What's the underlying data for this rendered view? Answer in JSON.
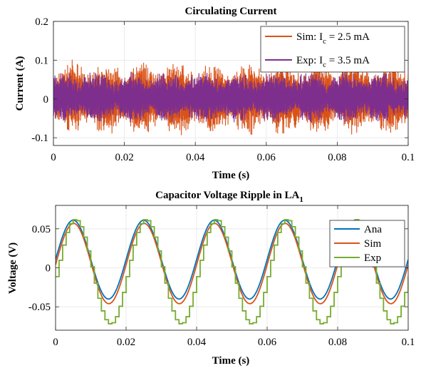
{
  "chart_data": [
    {
      "type": "line",
      "title": "Circulating Current",
      "xlabel": "Time (s)",
      "ylabel": "Current (A)",
      "xlim": [
        0,
        0.1
      ],
      "ylim": [
        -0.12,
        0.2
      ],
      "xticks": [
        0,
        0.02,
        0.04,
        0.06,
        0.08,
        0.1
      ],
      "xtick_labels": [
        "0",
        "0.02",
        "0.04",
        "0.06",
        "0.08",
        "0.1"
      ],
      "yticks": [
        -0.1,
        0,
        0.1,
        0.2
      ],
      "ytick_labels": [
        "-0.1",
        "0",
        "0.1",
        "0.2"
      ],
      "grid": true,
      "legend_position": "top-right",
      "series": [
        {
          "name": "Sim: I_c = 2.5 mA",
          "legend_main": "Sim: I",
          "legend_sub": "c",
          "legend_rest": " = 2.5 mA",
          "color": "#D95319",
          "amplitude": 0.085,
          "mean": 0.0025,
          "noise": "high-frequency switching ripple"
        },
        {
          "name": "Exp: I_c = 3.5 mA",
          "legend_main": "Exp: I",
          "legend_sub": "c",
          "legend_rest": " = 3.5 mA",
          "color": "#7E2F8E",
          "amplitude": 0.06,
          "mean": 0.0035,
          "noise": "high-frequency switching ripple"
        }
      ]
    },
    {
      "type": "line",
      "title": "Capacitor Voltage Ripple in LA",
      "title_sub": "1",
      "xlabel": "Time (s)",
      "ylabel": "Voltage (V)",
      "xlim": [
        0,
        0.1
      ],
      "ylim": [
        -0.08,
        0.08
      ],
      "xticks": [
        0,
        0.02,
        0.04,
        0.06,
        0.08,
        0.1
      ],
      "xtick_labels": [
        "0",
        "0.02",
        "0.04",
        "0.06",
        "0.08",
        "0.1"
      ],
      "yticks": [
        -0.05,
        0,
        0.05
      ],
      "ytick_labels": [
        "-0.05",
        "0",
        "0.05"
      ],
      "grid": true,
      "legend_position": "top-right",
      "series": [
        {
          "name": "Ana",
          "color": "#0072BD",
          "frequency_hz": 50,
          "peak": 0.061,
          "trough": -0.04
        },
        {
          "name": "Sim",
          "color": "#D95319",
          "frequency_hz": 50,
          "peak": 0.057,
          "trough": -0.046
        },
        {
          "name": "Exp",
          "color": "#77AC30",
          "frequency_hz": 50,
          "peak": 0.062,
          "trough": -0.072,
          "style": "staircase"
        }
      ]
    }
  ]
}
